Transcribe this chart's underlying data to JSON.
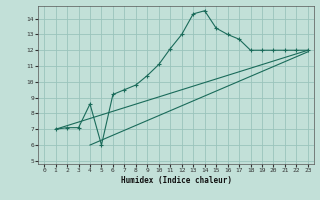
{
  "xlabel": "Humidex (Indice chaleur)",
  "bg_color": "#c2e0d8",
  "grid_color": "#9ac4bc",
  "line_color": "#1a6b5a",
  "xlim": [
    -0.5,
    23.5
  ],
  "ylim": [
    4.8,
    14.8
  ],
  "xticks": [
    0,
    1,
    2,
    3,
    4,
    5,
    6,
    7,
    8,
    9,
    10,
    11,
    12,
    13,
    14,
    15,
    16,
    17,
    18,
    19,
    20,
    21,
    22,
    23
  ],
  "yticks": [
    5,
    6,
    7,
    8,
    9,
    10,
    11,
    12,
    13,
    14
  ],
  "curve1_x": [
    1,
    2,
    3,
    4,
    5,
    6,
    7,
    8,
    9,
    10,
    11,
    12,
    13,
    14,
    15,
    16,
    17,
    18,
    19,
    20,
    21,
    22,
    23
  ],
  "curve1_y": [
    7.0,
    7.1,
    7.1,
    8.6,
    6.0,
    9.2,
    9.5,
    9.8,
    10.4,
    11.1,
    12.1,
    13.0,
    14.3,
    14.5,
    13.4,
    13.0,
    12.7,
    12.0,
    12.0,
    12.0,
    12.0,
    12.0,
    12.0
  ],
  "line2_x": [
    1,
    23
  ],
  "line2_y": [
    7.0,
    12.0
  ],
  "line3_x": [
    4,
    23
  ],
  "line3_y": [
    6.0,
    11.9
  ],
  "marker_size": 2.5
}
